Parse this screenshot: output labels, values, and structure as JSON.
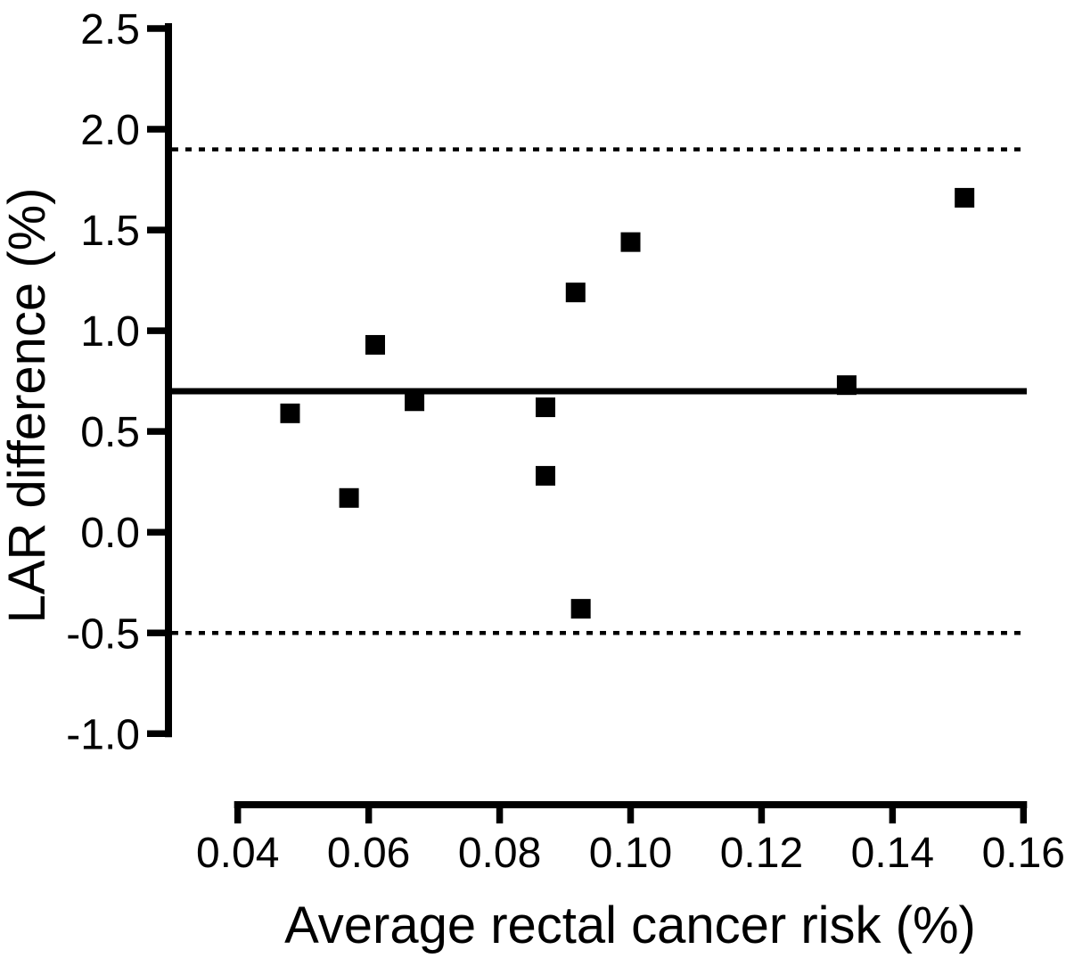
{
  "chart_data": {
    "type": "scatter",
    "title": "",
    "xlabel": "Average rectal cancer risk (%)",
    "ylabel": "LAR difference (%)",
    "marker": "filled-square",
    "marker_color": "#000000",
    "background_color": "#ffffff",
    "axis_color": "#000000",
    "grid": false,
    "legend": false,
    "xlim": [
      0.04,
      0.16
    ],
    "ylim": [
      -1.0,
      2.5
    ],
    "x_ticks": [
      {
        "value": 0.04,
        "label": "0.04"
      },
      {
        "value": 0.06,
        "label": "0.06"
      },
      {
        "value": 0.08,
        "label": "0.08"
      },
      {
        "value": 0.1,
        "label": "0.10"
      },
      {
        "value": 0.12,
        "label": "0.12"
      },
      {
        "value": 0.14,
        "label": "0.14"
      },
      {
        "value": 0.16,
        "label": "0.16"
      }
    ],
    "y_ticks": [
      {
        "value": 2.5,
        "label": "2.5"
      },
      {
        "value": 2.0,
        "label": "2.0"
      },
      {
        "value": 1.5,
        "label": "1.5"
      },
      {
        "value": 1.0,
        "label": "1.0"
      },
      {
        "value": 0.5,
        "label": "0.5"
      },
      {
        "value": 0.0,
        "label": "0.0"
      },
      {
        "value": -0.5,
        "label": "-0.5"
      },
      {
        "value": -1.0,
        "label": "-1.0"
      }
    ],
    "reference_lines": [
      {
        "name": "mean-difference-line",
        "value": 0.7,
        "style": "solid"
      },
      {
        "name": "upper-limit-line",
        "value": 1.9,
        "style": "dotted"
      },
      {
        "name": "lower-limit-line",
        "value": -0.5,
        "style": "dotted"
      }
    ],
    "points": [
      {
        "x": 0.048,
        "y": 0.59
      },
      {
        "x": 0.057,
        "y": 0.17
      },
      {
        "x": 0.061,
        "y": 0.93
      },
      {
        "x": 0.067,
        "y": 0.65
      },
      {
        "x": 0.087,
        "y": 0.62
      },
      {
        "x": 0.087,
        "y": 0.28
      },
      {
        "x": 0.0916,
        "y": 1.19
      },
      {
        "x": 0.0924,
        "y": -0.38
      },
      {
        "x": 0.1,
        "y": 1.44
      },
      {
        "x": 0.133,
        "y": 0.73
      },
      {
        "x": 0.151,
        "y": 1.66
      }
    ]
  }
}
